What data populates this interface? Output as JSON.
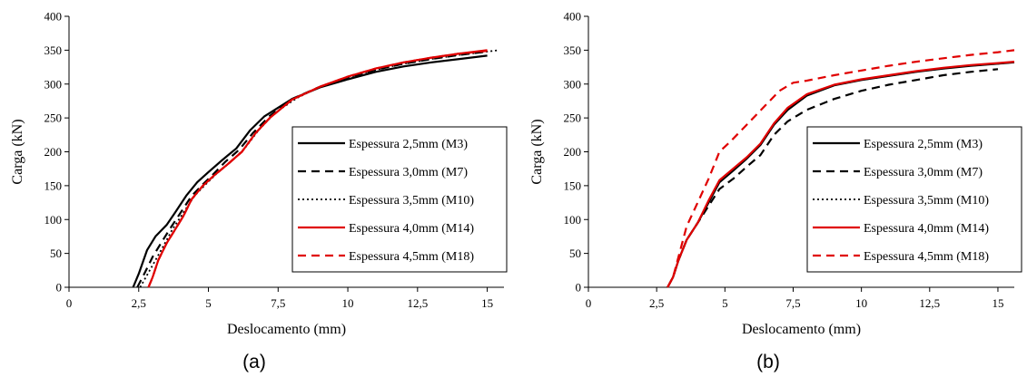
{
  "chart_data": [
    {
      "type": "line",
      "caption": "(a)",
      "xlabel": "Deslocamento (mm)",
      "ylabel": "Carga (kN)",
      "xlim": [
        0,
        15.6
      ],
      "ylim": [
        0,
        400
      ],
      "xticks": [
        0,
        2.5,
        5,
        7.5,
        10,
        12.5,
        15
      ],
      "xtick_labels": [
        "0",
        "2,5",
        "5",
        "7,5",
        "10",
        "12,5",
        "15"
      ],
      "yticks": [
        0,
        50,
        100,
        150,
        200,
        250,
        300,
        350,
        400
      ],
      "ytick_labels": [
        "0",
        "50",
        "100",
        "150",
        "200",
        "250",
        "300",
        "350",
        "400"
      ],
      "grid": false,
      "legend_position": "right",
      "series": [
        {
          "name": "Espessura 2,5mm (M3)",
          "color": "#000000",
          "style": "solid",
          "x": [
            2.3,
            2.5,
            2.8,
            3.1,
            3.5,
            3.8,
            4.2,
            4.6,
            5.0,
            5.5,
            6.0,
            6.5,
            7.0,
            8.0,
            9.0,
            10.0,
            11.0,
            12.0,
            13.0,
            14.0,
            15.0
          ],
          "y": [
            0,
            20,
            55,
            75,
            92,
            110,
            135,
            155,
            170,
            188,
            205,
            232,
            252,
            278,
            295,
            307,
            318,
            326,
            332,
            337,
            342
          ]
        },
        {
          "name": "Espessura 3,0mm (M7)",
          "color": "#000000",
          "style": "dashed",
          "x": [
            2.45,
            2.7,
            3.0,
            3.3,
            3.6,
            4.0,
            4.4,
            4.8,
            5.2,
            5.6,
            6.1,
            6.6,
            7.2,
            8.0,
            9.0,
            10.0,
            11.0,
            12.0,
            13.0,
            14.0,
            15.0
          ],
          "y": [
            0,
            20,
            45,
            65,
            85,
            110,
            135,
            152,
            168,
            185,
            203,
            228,
            253,
            278,
            296,
            310,
            321,
            330,
            337,
            343,
            348
          ]
        },
        {
          "name": "Espessura 3,5mm (M10)",
          "color": "#000000",
          "style": "dotted",
          "x": [
            2.55,
            2.8,
            3.1,
            3.4,
            3.7,
            4.1,
            4.5,
            4.9,
            5.3,
            5.8,
            6.3,
            6.8,
            7.4,
            8.2,
            9.0,
            10.0,
            11.0,
            12.0,
            13.0,
            14.0,
            15.0,
            15.4
          ],
          "y": [
            0,
            18,
            40,
            62,
            85,
            110,
            135,
            152,
            168,
            185,
            205,
            232,
            258,
            280,
            296,
            310,
            321,
            330,
            337,
            343,
            348,
            350
          ]
        },
        {
          "name": "Espessura 4,0mm (M14)",
          "color": "#e00000",
          "style": "solid",
          "x": [
            2.85,
            3.0,
            3.2,
            3.5,
            3.8,
            4.1,
            4.4,
            4.8,
            5.2,
            5.7,
            6.2,
            6.7,
            7.2,
            8.0,
            9.0,
            10.0,
            11.0,
            12.0,
            13.0,
            14.0,
            15.0
          ],
          "y": [
            0,
            15,
            40,
            65,
            85,
            105,
            130,
            150,
            165,
            182,
            200,
            228,
            250,
            277,
            296,
            311,
            323,
            332,
            339,
            345,
            350
          ]
        },
        {
          "name": "Espessura 4,5mm (M18)",
          "color": "#e00000",
          "style": "dashed",
          "x": [
            2.85,
            3.0,
            3.2,
            3.5,
            3.8,
            4.1,
            4.4,
            4.8,
            5.2,
            5.7,
            6.2,
            6.7,
            7.2,
            8.0,
            9.0,
            10.0,
            11.0,
            12.0,
            13.0,
            14.0,
            15.0
          ],
          "y": [
            0,
            15,
            40,
            65,
            85,
            105,
            130,
            150,
            165,
            182,
            200,
            228,
            250,
            277,
            296,
            311,
            323,
            332,
            339,
            345,
            349
          ]
        }
      ]
    },
    {
      "type": "line",
      "caption": "(b)",
      "xlabel": "Deslocamento (mm)",
      "ylabel": "Carga (kN)",
      "xlim": [
        0,
        15.6
      ],
      "ylim": [
        0,
        400
      ],
      "xticks": [
        0,
        2.5,
        5,
        7.5,
        10,
        12.5,
        15
      ],
      "xtick_labels": [
        "0",
        "2,5",
        "5",
        "7,5",
        "10",
        "12,5",
        "15"
      ],
      "yticks": [
        0,
        50,
        100,
        150,
        200,
        250,
        300,
        350,
        400
      ],
      "ytick_labels": [
        "0",
        "50",
        "100",
        "150",
        "200",
        "250",
        "300",
        "350",
        "400"
      ],
      "grid": false,
      "legend_position": "right",
      "series": [
        {
          "name": "Espessura 2,5mm (M3)",
          "color": "#000000",
          "style": "solid",
          "x": [
            2.9,
            3.1,
            3.3,
            3.6,
            4.0,
            4.4,
            4.8,
            5.3,
            5.8,
            6.3,
            6.8,
            7.3,
            8.0,
            9.0,
            10.0,
            11.0,
            12.0,
            13.0,
            14.0,
            15.0,
            15.6
          ],
          "y": [
            0,
            15,
            40,
            70,
            95,
            125,
            155,
            172,
            190,
            210,
            240,
            262,
            283,
            298,
            306,
            312,
            318,
            323,
            327,
            330,
            332
          ]
        },
        {
          "name": "Espessura 3,0mm (M7)",
          "color": "#000000",
          "style": "dashed",
          "x": [
            2.9,
            3.1,
            3.3,
            3.6,
            4.0,
            4.4,
            4.8,
            5.3,
            5.8,
            6.3,
            6.8,
            7.3,
            8.0,
            9.0,
            10.0,
            11.0,
            12.0,
            13.0,
            14.0,
            15.0
          ],
          "y": [
            0,
            15,
            40,
            70,
            95,
            120,
            145,
            160,
            178,
            195,
            225,
            245,
            262,
            278,
            290,
            299,
            306,
            313,
            318,
            322
          ]
        },
        {
          "name": "Espessura 3,5mm (M10)",
          "color": "#000000",
          "style": "dotted",
          "x": [
            2.9,
            3.1,
            3.3,
            3.6,
            4.0,
            4.4,
            4.8,
            5.3,
            5.8,
            6.3,
            6.8,
            7.3,
            8.0,
            9.0,
            10.0,
            11.0,
            12.0,
            13.0,
            14.0,
            15.0,
            15.6
          ],
          "y": [
            0,
            15,
            40,
            70,
            95,
            125,
            155,
            172,
            190,
            210,
            240,
            262,
            283,
            298,
            306,
            312,
            318,
            323,
            327,
            330,
            332
          ]
        },
        {
          "name": "Espessura 4,0mm (M14)",
          "color": "#e00000",
          "style": "solid",
          "x": [
            2.9,
            3.1,
            3.3,
            3.6,
            4.0,
            4.4,
            4.8,
            5.3,
            5.8,
            6.3,
            6.8,
            7.3,
            8.0,
            9.0,
            10.0,
            11.0,
            12.0,
            13.0,
            14.0,
            15.0,
            15.6
          ],
          "y": [
            0,
            15,
            40,
            70,
            95,
            128,
            158,
            175,
            192,
            212,
            242,
            265,
            285,
            299,
            307,
            313,
            319,
            324,
            328,
            331,
            333
          ]
        },
        {
          "name": "Espessura 4,5mm (M18)",
          "color": "#e00000",
          "style": "dashed",
          "x": [
            2.9,
            3.1,
            3.3,
            3.6,
            4.0,
            4.4,
            4.8,
            5.2,
            5.8,
            6.4,
            7.0,
            7.5,
            8.0,
            9.0,
            10.0,
            11.0,
            12.0,
            13.0,
            14.0,
            15.0,
            15.6
          ],
          "y": [
            0,
            15,
            45,
            90,
            125,
            160,
            200,
            215,
            240,
            265,
            290,
            302,
            305,
            313,
            320,
            327,
            333,
            338,
            343,
            347,
            350
          ]
        }
      ]
    }
  ]
}
